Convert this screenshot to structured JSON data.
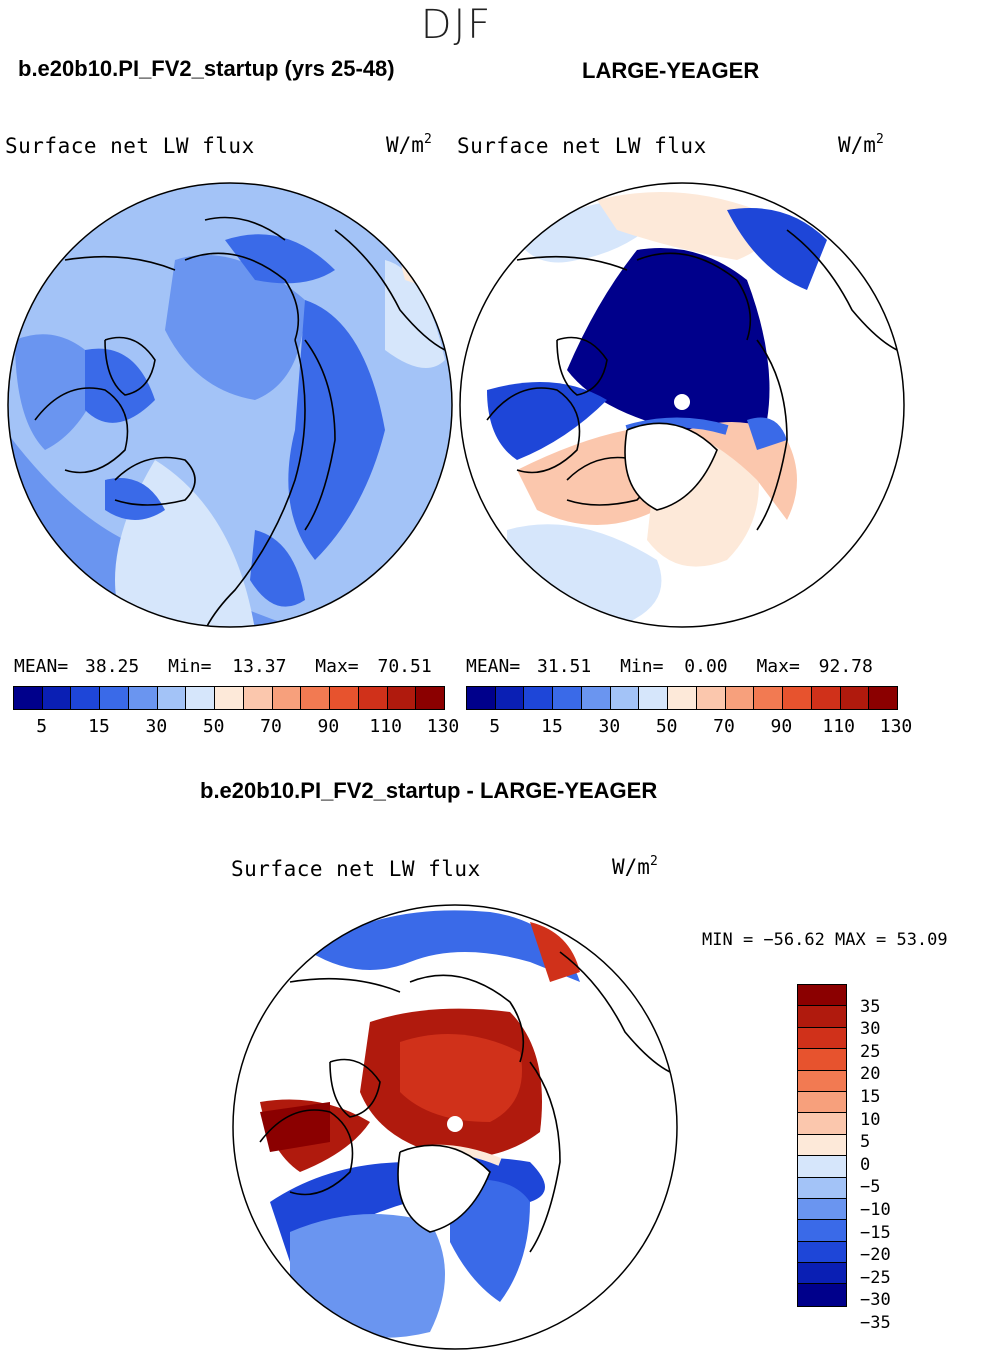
{
  "figure": {
    "season": "DJF",
    "variable_label": "Surface net LW flux",
    "units_base": "W/m",
    "units_exp": "2"
  },
  "panels": {
    "left": {
      "title": "b.e20b10.PI_FV2_startup (yrs 25-48)",
      "mean_label": "MEAN=",
      "mean_value": "38.25",
      "min_label": "Min=",
      "min_value": "13.37",
      "max_label": "Max=",
      "max_value": "70.51"
    },
    "right": {
      "title": "LARGE-YEAGER",
      "mean_label": "MEAN=",
      "mean_value": "31.51",
      "min_label": "Min=",
      "min_value": "0.00",
      "max_label": "Max=",
      "max_value": "92.78"
    },
    "diff": {
      "title": "b.e20b10.PI_FV2_startup - LARGE-YEAGER",
      "minmax_text": "MIN = −56.62 MAX =  53.09"
    }
  },
  "colorbars": {
    "abs_colors": [
      "#00008b",
      "#0a1fb4",
      "#1e46d8",
      "#3a6ae8",
      "#6a95f0",
      "#a3c3f7",
      "#d6e6fb",
      "#fde9d9",
      "#fbc7ad",
      "#f7a07c",
      "#f27a52",
      "#e7532e",
      "#d0311a",
      "#b01a0d",
      "#8b0000"
    ],
    "abs_ticks": [
      "5",
      "15",
      "30",
      "50",
      "70",
      "90",
      "110",
      "130"
    ],
    "diff_colors": [
      "#8b0000",
      "#b01a0d",
      "#d0311a",
      "#e7532e",
      "#f27a52",
      "#f7a07c",
      "#fbc7ad",
      "#fde9d9",
      "#d6e6fb",
      "#a3c3f7",
      "#6a95f0",
      "#3a6ae8",
      "#1e46d8",
      "#0a1fb4",
      "#00008b"
    ],
    "diff_ticks": [
      "35",
      "30",
      "25",
      "20",
      "15",
      "10",
      "5",
      "0",
      "−5",
      "−10",
      "−15",
      "−20",
      "−25",
      "−30",
      "−35"
    ]
  },
  "map_colors": {
    "land_white": "#ffffff",
    "coast": "#000000"
  }
}
